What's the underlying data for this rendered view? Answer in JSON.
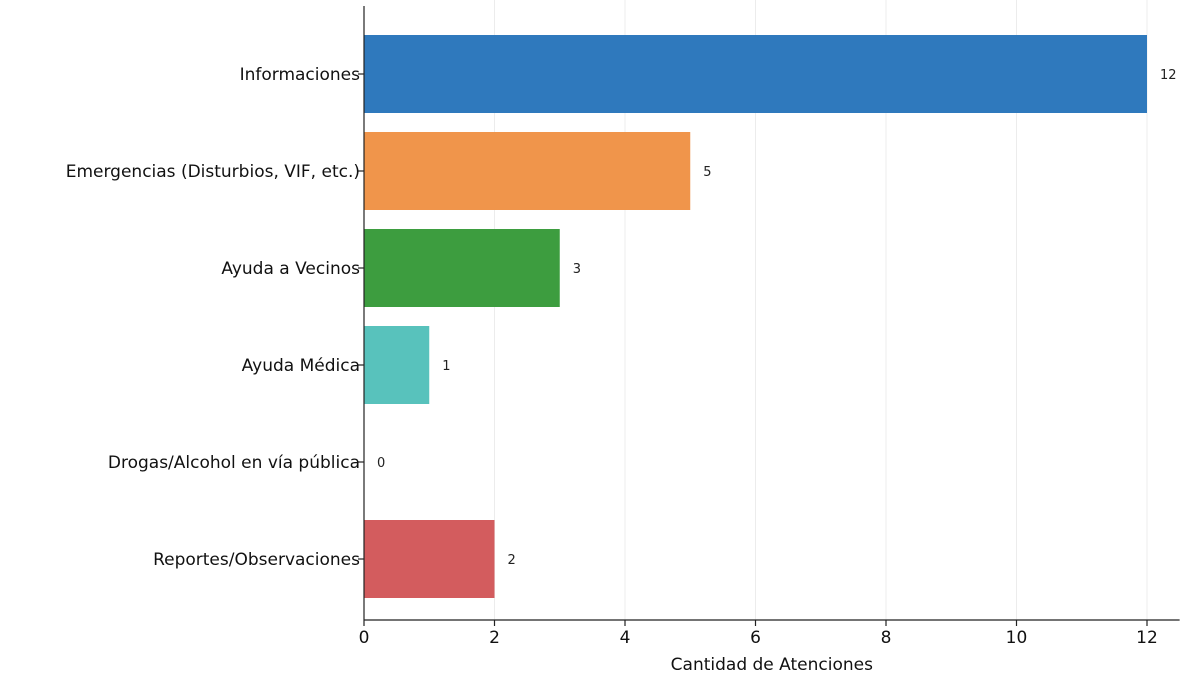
{
  "chart_data": {
    "type": "bar",
    "orientation": "horizontal",
    "categories": [
      "Informaciones",
      "Emergencias (Disturbios, VIF, etc.)",
      "Ayuda a Vecinos",
      "Ayuda Médica",
      "Drogas/Alcohol en vía pública",
      "Reportes/Observaciones"
    ],
    "values": [
      12,
      5,
      3,
      1,
      0,
      2
    ],
    "data_labels": [
      "12",
      "5",
      "3",
      "1",
      "0",
      "2"
    ],
    "colors": [
      "#2f79bd",
      "#f0954b",
      "#3d9d3f",
      "#58c2bc",
      "#9b6ac4",
      "#d35c5e"
    ],
    "xlabel": "Cantidad de Atenciones",
    "ylabel": "",
    "xlim": [
      0,
      12.5
    ],
    "xticks": [
      0,
      2,
      4,
      6,
      8,
      10,
      12
    ],
    "xtick_labels": [
      "0",
      "2",
      "4",
      "6",
      "8",
      "10",
      "12"
    ],
    "grid": "x",
    "legend": "none"
  }
}
